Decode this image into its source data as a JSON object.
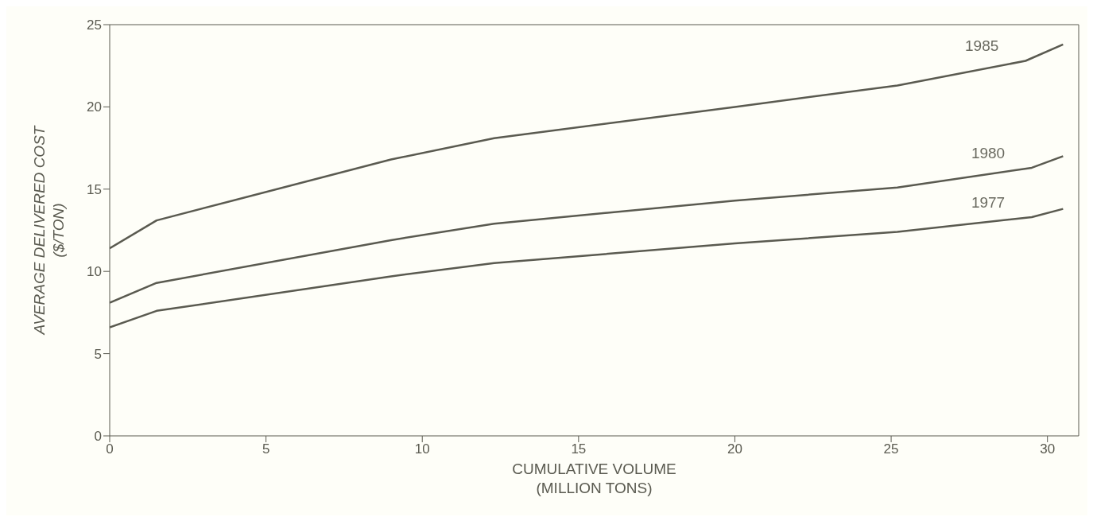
{
  "chart_data": {
    "type": "line",
    "xlabel": "CUMULATIVE VOLUME\n(MILLION TONS)",
    "ylabel": "AVERAGE DELIVERED COST\n($/TON)",
    "xlim": [
      0,
      31
    ],
    "xticks": [
      0,
      5,
      10,
      15,
      20,
      25,
      30
    ],
    "ylim": [
      0,
      25
    ],
    "yticks": [
      0,
      5,
      10,
      15,
      20,
      25
    ],
    "grid": false,
    "legend": false,
    "marker": "none",
    "line_style": "solid",
    "series": [
      {
        "name": "1985",
        "color": "#5a5a50",
        "x": [
          0,
          1.5,
          9,
          12.3,
          20,
          25.2,
          29.3,
          30.5
        ],
        "values": [
          11.4,
          13.1,
          16.8,
          18.1,
          20.0,
          21.3,
          22.8,
          23.8
        ]
      },
      {
        "name": "1980",
        "color": "#5a5a50",
        "x": [
          0,
          1.5,
          9,
          12.3,
          20,
          25.2,
          29.5,
          30.5
        ],
        "values": [
          8.1,
          9.3,
          11.9,
          12.9,
          14.3,
          15.1,
          16.3,
          17.0
        ]
      },
      {
        "name": "1977",
        "color": "#5a5a50",
        "x": [
          0,
          1.5,
          9,
          12.3,
          20,
          25.2,
          29.5,
          30.5
        ],
        "values": [
          6.6,
          7.6,
          9.7,
          10.5,
          11.7,
          12.4,
          13.3,
          13.8
        ]
      }
    ]
  }
}
